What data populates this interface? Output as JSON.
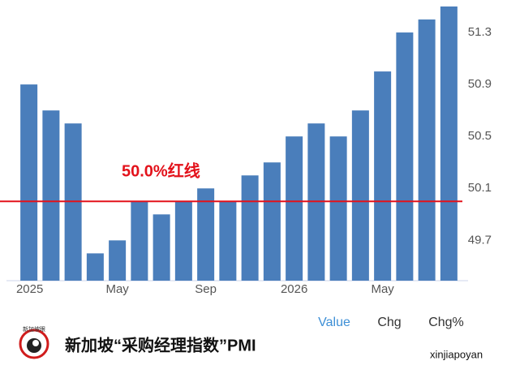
{
  "chart_data": {
    "type": "bar",
    "categories": [
      "2025",
      null,
      null,
      null,
      "May",
      null,
      null,
      null,
      "Sep",
      null,
      null,
      null,
      "2026",
      null,
      null,
      null,
      "May",
      null,
      null,
      null
    ],
    "values": [
      50.9,
      50.7,
      50.6,
      49.6,
      49.7,
      50.0,
      49.9,
      50.0,
      50.1,
      50.0,
      50.2,
      50.3,
      50.5,
      50.6,
      50.5,
      50.7,
      51.0,
      51.3,
      51.4,
      51.5
    ],
    "color": "#4a7ebb",
    "ylim": [
      49.39,
      51.55
    ],
    "yticks": [
      49.7,
      50.1,
      50.5,
      50.9,
      51.3
    ],
    "reference_line": {
      "value": 50.0,
      "label": "50.0%红线",
      "color": "#e3121b"
    }
  },
  "tabs": [
    "Value",
    "Chg",
    "Chg%"
  ],
  "logo_text": "新加坡眼",
  "title": "新加坡“采购经理指数”PMI",
  "watermark": "xinjiapoyan"
}
